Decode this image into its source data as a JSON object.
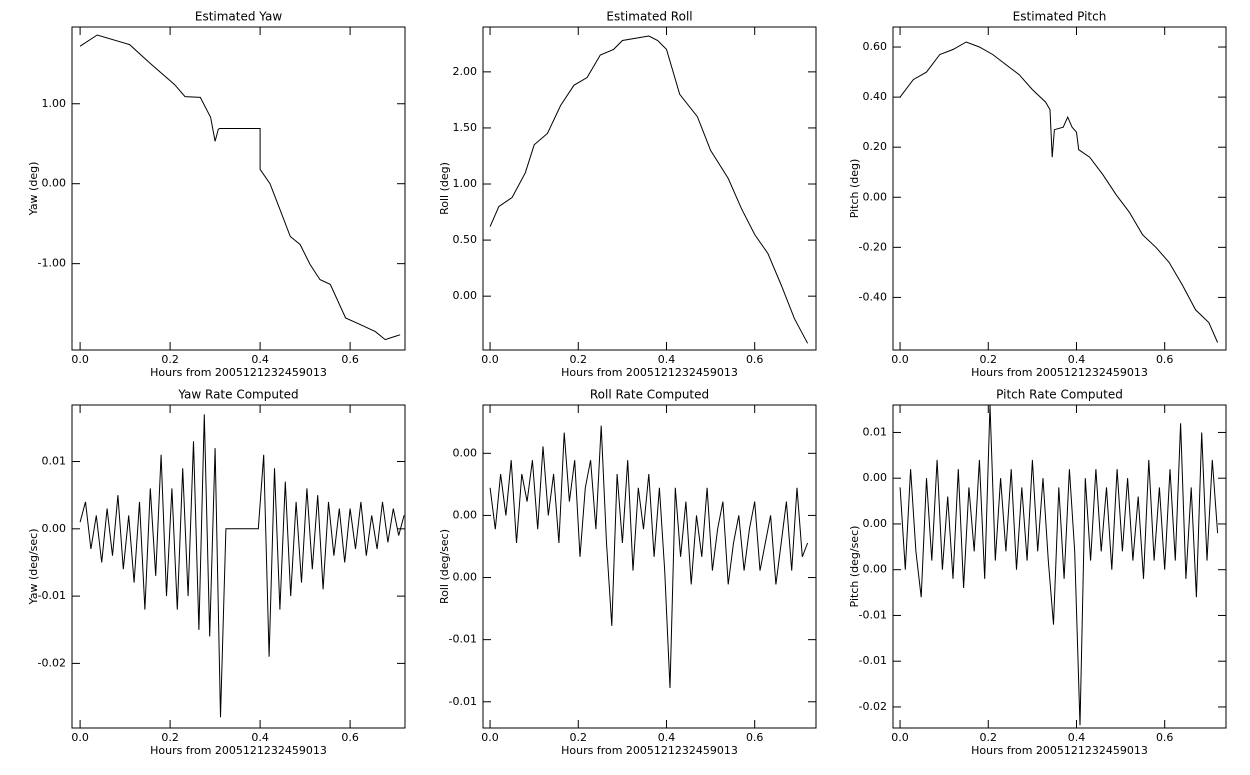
{
  "chart_data": [
    {
      "type": "line",
      "title": "Estimated Yaw",
      "x_label": "Hours from 2005121232459013",
      "y_label": "Yaw (deg)",
      "x": [
        0,
        0.038,
        0.11,
        0.155,
        0.21,
        0.233,
        0.267,
        0.29,
        0.3,
        0.307,
        0.31,
        0.4,
        0.4,
        0.422,
        0.444,
        0.467,
        0.489,
        0.511,
        0.533,
        0.556,
        0.59,
        0.622,
        0.656,
        0.678,
        0.7,
        0.711
      ],
      "values": [
        1.72,
        1.86,
        1.74,
        1.51,
        1.24,
        1.09,
        1.08,
        0.83,
        0.53,
        0.68,
        0.69,
        0.69,
        0.18,
        0.0,
        -0.32,
        -0.66,
        -0.76,
        -1.01,
        -1.2,
        -1.26,
        -1.68,
        -1.76,
        -1.85,
        -1.95,
        -1.91,
        -1.89
      ],
      "color": "#000000",
      "xlim": [
        -0.018,
        0.722
      ],
      "xticks": [
        {
          "value": 0,
          "label": "0.0"
        },
        0.2,
        0.4,
        0.6
      ],
      "ylim": [
        -2.08,
        1.96
      ],
      "yticks": [
        {
          "value": 1,
          "label": "1.00"
        },
        {
          "value": 0,
          "label": "0.00"
        },
        {
          "value": -1,
          "label": "-1.00"
        }
      ]
    },
    {
      "type": "line",
      "title": "Estimated Roll",
      "x_label": "Hours from 2005121232459013",
      "y_label": "Roll (deg)",
      "x": [
        0,
        0.02,
        0.05,
        0.08,
        0.1,
        0.13,
        0.16,
        0.19,
        0.22,
        0.25,
        0.28,
        0.3,
        0.33,
        0.36,
        0.38,
        0.4,
        0.43,
        0.47,
        0.5,
        0.54,
        0.57,
        0.6,
        0.63,
        0.66,
        0.69,
        0.72
      ],
      "values": [
        0.62,
        0.8,
        0.88,
        1.1,
        1.35,
        1.45,
        1.7,
        1.88,
        1.95,
        2.15,
        2.2,
        2.28,
        2.3,
        2.32,
        2.28,
        2.2,
        1.8,
        1.6,
        1.3,
        1.05,
        0.78,
        0.55,
        0.38,
        0.1,
        -0.2,
        -0.42
      ],
      "color": "#000000",
      "xlim": [
        -0.016,
        0.739
      ],
      "xticks": [
        {
          "value": 0,
          "label": "0.0"
        },
        0.2,
        0.4,
        0.6
      ],
      "ylim": [
        -0.48,
        2.4
      ],
      "yticks": [
        {
          "value": 2,
          "label": "2.00"
        },
        {
          "value": 1.5,
          "label": "1.50"
        },
        {
          "value": 1,
          "label": "1.00"
        },
        {
          "value": 0.5,
          "label": "0.50"
        },
        {
          "value": 0,
          "label": "0.00"
        }
      ]
    },
    {
      "type": "line",
      "title": "Estimated Pitch",
      "x_label": "Hours from 2005121232459013",
      "y_label": "Pitch (deg)",
      "x": [
        0,
        0.03,
        0.06,
        0.09,
        0.12,
        0.15,
        0.18,
        0.21,
        0.24,
        0.27,
        0.3,
        0.33,
        0.34,
        0.345,
        0.35,
        0.37,
        0.38,
        0.39,
        0.4,
        0.405,
        0.43,
        0.46,
        0.49,
        0.52,
        0.55,
        0.58,
        0.61,
        0.64,
        0.67,
        0.7,
        0.72
      ],
      "values": [
        0.4,
        0.47,
        0.5,
        0.57,
        0.59,
        0.62,
        0.6,
        0.57,
        0.53,
        0.49,
        0.43,
        0.38,
        0.35,
        0.16,
        0.27,
        0.28,
        0.32,
        0.28,
        0.26,
        0.19,
        0.16,
        0.09,
        0.01,
        -0.06,
        -0.15,
        -0.2,
        -0.26,
        -0.35,
        -0.45,
        -0.5,
        -0.58
      ],
      "color": "#000000",
      "xlim": [
        -0.016,
        0.739
      ],
      "xticks": [
        {
          "value": 0,
          "label": "0.0"
        },
        0.2,
        0.4,
        0.6
      ],
      "ylim": [
        -0.61,
        0.68
      ],
      "yticks": [
        {
          "value": 0.6,
          "label": "0.60"
        },
        {
          "value": 0.4,
          "label": "0.40"
        },
        {
          "value": 0.2,
          "label": "0.20"
        },
        {
          "value": 0,
          "label": "0.00"
        },
        {
          "value": -0.2,
          "label": "-0.20"
        },
        {
          "value": -0.4,
          "label": "-0.40"
        }
      ]
    },
    {
      "type": "line",
      "title": "Yaw Rate Computed",
      "x_label": "Hours from 2005121232459013",
      "y_label": "Yaw (deg/sec)",
      "x": [
        0,
        0.012,
        0.024,
        0.036,
        0.048,
        0.06,
        0.072,
        0.084,
        0.096,
        0.108,
        0.12,
        0.132,
        0.144,
        0.156,
        0.168,
        0.18,
        0.192,
        0.204,
        0.216,
        0.228,
        0.24,
        0.252,
        0.264,
        0.276,
        0.288,
        0.3,
        0.312,
        0.324,
        0.336,
        0.348,
        0.36,
        0.372,
        0.384,
        0.396,
        0.408,
        0.42,
        0.432,
        0.444,
        0.456,
        0.468,
        0.48,
        0.492,
        0.504,
        0.516,
        0.528,
        0.54,
        0.552,
        0.564,
        0.576,
        0.588,
        0.6,
        0.612,
        0.624,
        0.636,
        0.648,
        0.66,
        0.672,
        0.684,
        0.696,
        0.708,
        0.72
      ],
      "values": [
        0.001,
        0.004,
        -0.003,
        0.002,
        -0.005,
        0.003,
        -0.004,
        0.005,
        -0.006,
        0.002,
        -0.008,
        0.004,
        -0.012,
        0.006,
        -0.007,
        0.011,
        -0.01,
        0.006,
        -0.012,
        0.009,
        -0.01,
        0.013,
        -0.015,
        0.017,
        -0.016,
        0.012,
        -0.028,
        0,
        0,
        0,
        0,
        0,
        0,
        0,
        0.011,
        -0.019,
        0.009,
        -0.012,
        0.007,
        -0.01,
        0.004,
        -0.008,
        0.006,
        -0.006,
        0.005,
        -0.009,
        0.004,
        -0.004,
        0.003,
        -0.005,
        0.003,
        -0.003,
        0.004,
        -0.004,
        0.002,
        -0.003,
        0.004,
        -0.002,
        0.003,
        -0.001,
        0.002
      ],
      "color": "#000000",
      "xlim": [
        -0.018,
        0.722
      ],
      "xticks": [
        {
          "value": 0,
          "label": "0.0"
        },
        0.2,
        0.4,
        0.6
      ],
      "ylim": [
        -0.0296,
        0.0184
      ],
      "yticks": [
        0.01,
        {
          "value": 0,
          "label": "0.00"
        },
        -0.01,
        -0.02
      ]
    },
    {
      "type": "line",
      "title": "Roll Rate Computed",
      "x_label": "Hours from 2005121232459013",
      "y_label": "Roll (deg/sec)",
      "x": [
        0,
        0.012,
        0.024,
        0.036,
        0.048,
        0.06,
        0.072,
        0.084,
        0.096,
        0.108,
        0.12,
        0.132,
        0.144,
        0.156,
        0.168,
        0.18,
        0.192,
        0.204,
        0.216,
        0.228,
        0.24,
        0.252,
        0.264,
        0.276,
        0.288,
        0.3,
        0.312,
        0.324,
        0.336,
        0.348,
        0.36,
        0.372,
        0.384,
        0.396,
        0.408,
        0.42,
        0.432,
        0.444,
        0.456,
        0.468,
        0.48,
        0.492,
        0.504,
        0.516,
        0.528,
        0.54,
        0.552,
        0.564,
        0.576,
        0.588,
        0.6,
        0.612,
        0.624,
        0.636,
        0.648,
        0.66,
        0.672,
        0.684,
        0.696,
        0.708,
        0.72
      ],
      "values": [
        0.002,
        -0.001,
        0.003,
        0,
        0.004,
        -0.002,
        0.003,
        0.001,
        0.004,
        -0.001,
        0.005,
        0,
        0.003,
        -0.002,
        0.006,
        0.001,
        0.004,
        -0.003,
        0.002,
        0.004,
        -0.001,
        0.0065,
        -0.002,
        -0.008,
        0.003,
        -0.002,
        0.004,
        -0.004,
        0.002,
        -0.001,
        0.003,
        -0.003,
        0.002,
        -0.004,
        -0.0125,
        0.002,
        -0.003,
        0.001,
        -0.005,
        0,
        -0.003,
        0.002,
        -0.004,
        -0.001,
        0.001,
        -0.005,
        -0.002,
        0,
        -0.004,
        -0.001,
        0.001,
        -0.004,
        -0.002,
        0,
        -0.005,
        -0.002,
        0.001,
        -0.004,
        0.002,
        -0.003,
        -0.002
      ],
      "color": "#000000",
      "xlim": [
        -0.016,
        0.739
      ],
      "xticks": [
        {
          "value": 0,
          "label": "0.0"
        },
        0.2,
        0.4,
        0.6
      ],
      "ylim": [
        -0.0154,
        0.008
      ],
      "yticks": [
        {
          "value": 0.0045,
          "label": "0.00"
        },
        {
          "value": 0,
          "label": "0.00"
        },
        {
          "value": -0.0045,
          "label": "0.00"
        },
        {
          "value": -0.009,
          "label": "-0.01"
        },
        {
          "value": -0.0135,
          "label": "-0.01"
        }
      ]
    },
    {
      "type": "line",
      "title": "Pitch Rate Computed",
      "x_label": "Hours from 2005121232459013",
      "y_label": "Pitch (deg/sec)",
      "x": [
        0,
        0.012,
        0.024,
        0.036,
        0.048,
        0.06,
        0.072,
        0.084,
        0.096,
        0.108,
        0.12,
        0.132,
        0.144,
        0.156,
        0.168,
        0.18,
        0.192,
        0.204,
        0.216,
        0.228,
        0.24,
        0.252,
        0.264,
        0.276,
        0.288,
        0.3,
        0.312,
        0.324,
        0.336,
        0.348,
        0.36,
        0.372,
        0.384,
        0.396,
        0.408,
        0.42,
        0.432,
        0.444,
        0.456,
        0.468,
        0.48,
        0.492,
        0.504,
        0.516,
        0.528,
        0.54,
        0.552,
        0.564,
        0.576,
        0.588,
        0.6,
        0.612,
        0.624,
        0.636,
        0.648,
        0.66,
        0.672,
        0.684,
        0.696,
        0.708,
        0.72
      ],
      "values": [
        0.004,
        -0.005,
        0.006,
        -0.003,
        -0.008,
        0.005,
        -0.004,
        0.007,
        -0.005,
        0.003,
        -0.006,
        0.006,
        -0.007,
        0.004,
        -0.003,
        0.007,
        -0.006,
        0.013,
        -0.004,
        0.005,
        -0.003,
        0.006,
        -0.005,
        0.004,
        -0.004,
        0.007,
        -0.003,
        0.005,
        -0.004,
        -0.011,
        0.004,
        -0.006,
        0.006,
        -0.003,
        -0.022,
        0.005,
        -0.004,
        0.006,
        -0.003,
        0.004,
        -0.005,
        0.006,
        -0.003,
        0.005,
        -0.004,
        0.003,
        -0.006,
        0.007,
        -0.004,
        0.004,
        -0.005,
        0.006,
        -0.004,
        0.011,
        -0.006,
        0.004,
        -0.008,
        0.01,
        -0.004,
        0.007,
        -0.001
      ],
      "color": "#000000",
      "xlim": [
        -0.016,
        0.739
      ],
      "xticks": [
        {
          "value": 0,
          "label": "0.0"
        },
        0.2,
        0.4,
        0.6
      ],
      "ylim": [
        -0.0223,
        0.013
      ],
      "yticks": [
        0.01,
        {
          "value": 0.005,
          "label": "0.00"
        },
        {
          "value": 0,
          "label": "0.00"
        },
        {
          "value": -0.005,
          "label": "0.00"
        },
        -0.01,
        {
          "value": -0.015,
          "label": "-0.01"
        },
        -0.02
      ]
    }
  ]
}
